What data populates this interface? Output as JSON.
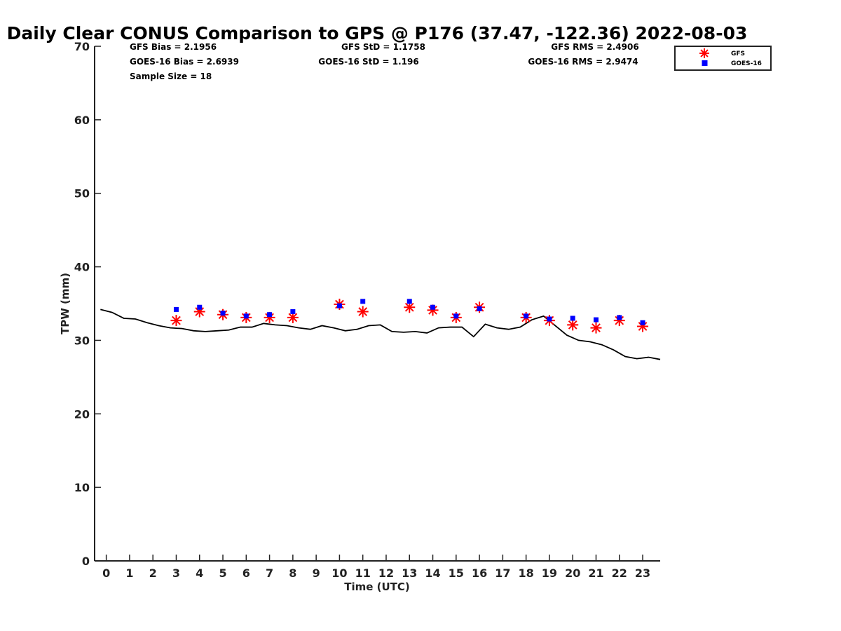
{
  "chart_data": {
    "type": "scatter",
    "title": "Daily Clear CONUS Comparison to GPS @ P176 (37.47, -122.36) 2022-08-03",
    "xlabel": "Time (UTC)",
    "ylabel": "TPW (mm)",
    "xlim": [
      -0.5,
      23.75
    ],
    "ylim": [
      0,
      70
    ],
    "xticks": [
      0,
      1,
      2,
      3,
      4,
      5,
      6,
      7,
      8,
      9,
      10,
      11,
      12,
      13,
      14,
      15,
      16,
      17,
      18,
      19,
      20,
      21,
      22,
      23
    ],
    "yticks": [
      0,
      10,
      20,
      30,
      40,
      50,
      60,
      70
    ],
    "grid": false,
    "legend_position": "top-right",
    "stats": [
      {
        "label": "GFS Bias = 2.1956"
      },
      {
        "label": "GFS StD = 1.1758"
      },
      {
        "label": "GFS RMS = 2.4906"
      },
      {
        "label": "GOES-16 Bias = 2.6939"
      },
      {
        "label": "GOES-16 StD = 1.196"
      },
      {
        "label": "GOES-16 RMS = 2.9474"
      },
      {
        "label": "Sample Size = 18"
      }
    ],
    "series": [
      {
        "name": "GFS",
        "marker": "asterisk",
        "color": "#ff0000",
        "x": [
          3,
          4,
          5,
          6,
          7,
          8,
          10,
          11,
          13,
          14,
          15,
          16,
          18,
          19,
          20,
          21,
          22,
          23
        ],
        "y": [
          32.7,
          33.9,
          33.5,
          33.1,
          33.1,
          33.1,
          34.9,
          33.9,
          34.5,
          34.1,
          33.1,
          34.5,
          33.1,
          32.7,
          32.1,
          31.7,
          32.7,
          31.9
        ]
      },
      {
        "name": "GOES-16",
        "marker": "square",
        "color": "#0000ff",
        "x": [
          3,
          4,
          5,
          6,
          7,
          8,
          10,
          11,
          13,
          14,
          15,
          16,
          18,
          19,
          20,
          21,
          22,
          23
        ],
        "y": [
          34.2,
          34.5,
          33.7,
          33.3,
          33.5,
          33.9,
          34.7,
          35.3,
          35.3,
          34.5,
          33.3,
          34.3,
          33.3,
          32.9,
          33.0,
          32.8,
          33.1,
          32.4
        ]
      },
      {
        "name": "GPS",
        "marker": "line",
        "color": "#000000",
        "x": [
          -0.25,
          0.25,
          0.75,
          1.25,
          1.75,
          2.25,
          2.75,
          3.25,
          3.75,
          4.25,
          4.75,
          5.25,
          5.75,
          6.25,
          6.75,
          7.25,
          7.75,
          8.25,
          8.75,
          9.25,
          9.75,
          10.25,
          10.75,
          11.25,
          11.75,
          12.25,
          12.75,
          13.25,
          13.75,
          14.25,
          14.75,
          15.25,
          15.75,
          16.25,
          16.75,
          17.25,
          17.75,
          18.25,
          18.75,
          19.25,
          19.75,
          20.25,
          20.75,
          21.25,
          21.75,
          22.25,
          22.75,
          23.25,
          23.75
        ],
        "y": [
          34.2,
          33.8,
          33.0,
          32.9,
          32.4,
          32.0,
          31.7,
          31.6,
          31.3,
          31.2,
          31.3,
          31.4,
          31.8,
          31.8,
          32.3,
          32.1,
          32.0,
          31.7,
          31.5,
          32.0,
          31.7,
          31.3,
          31.5,
          32.0,
          32.1,
          31.2,
          31.1,
          31.2,
          31.0,
          31.7,
          31.8,
          31.8,
          30.5,
          32.2,
          31.7,
          31.5,
          31.8,
          32.8,
          33.3,
          32.0,
          30.7,
          30.0,
          29.8,
          29.4,
          28.7,
          27.8,
          27.5,
          27.7,
          27.4
        ]
      }
    ]
  }
}
